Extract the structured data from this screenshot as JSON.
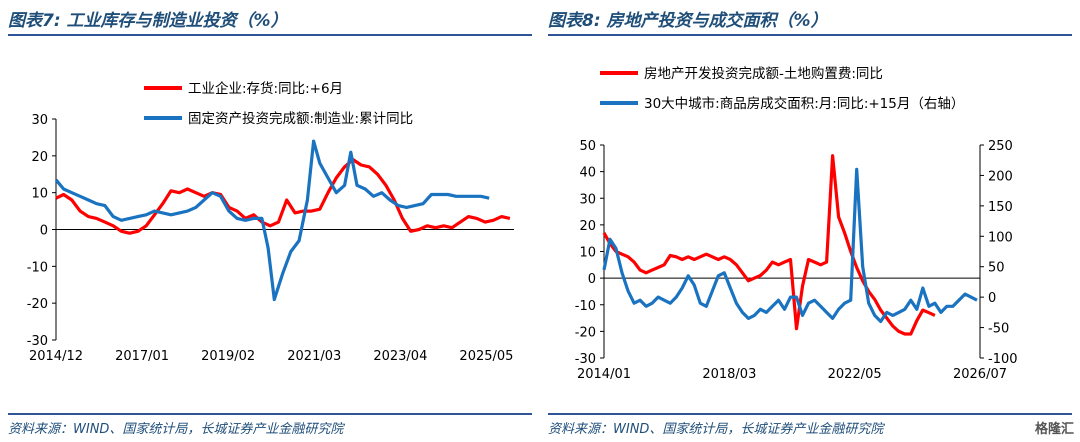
{
  "left": {
    "title": "图表7: 工业库存与制造业投资（%）",
    "source": "资料来源：WIND、国家统计局，长城证券产业金融研究院"
  },
  "right": {
    "title": "图表8: 房地产投资与成交面积（%）",
    "source": "资料来源：WIND、国家统计局，长城证券产业金融研究院"
  },
  "brand": "格隆汇",
  "colors": {
    "red": "#ff0000",
    "blue": "#1a73c0",
    "title": "#1f4e79"
  },
  "chart_data": [
    {
      "type": "line",
      "ylim": [
        -30,
        30
      ],
      "yticks": [
        -30,
        -20,
        -10,
        0,
        10,
        20,
        30
      ],
      "xlim": [
        2014.917,
        2026.0
      ],
      "xticks": [
        {
          "v": 2014.917,
          "label": "2014/12"
        },
        {
          "v": 2017.0,
          "label": "2017/01"
        },
        {
          "v": 2019.083,
          "label": "2019/02"
        },
        {
          "v": 2021.167,
          "label": "2021/03"
        },
        {
          "v": 2023.25,
          "label": "2023/04"
        },
        {
          "v": 2025.333,
          "label": "2025/05"
        }
      ],
      "legend_position": "top",
      "series": [
        {
          "name": "工业企业:存货:同比:+6月",
          "color": "red",
          "x": [
            2014.917,
            2015.1,
            2015.3,
            2015.5,
            2015.7,
            2015.9,
            2016.1,
            2016.3,
            2016.5,
            2016.7,
            2016.9,
            2017.1,
            2017.3,
            2017.5,
            2017.7,
            2017.9,
            2018.1,
            2018.3,
            2018.5,
            2018.7,
            2018.9,
            2019.1,
            2019.3,
            2019.5,
            2019.7,
            2019.9,
            2020.1,
            2020.3,
            2020.5,
            2020.7,
            2020.9,
            2021.1,
            2021.3,
            2021.5,
            2021.7,
            2021.9,
            2022.1,
            2022.3,
            2022.5,
            2022.7,
            2022.9,
            2023.1,
            2023.3,
            2023.5,
            2023.7,
            2023.9,
            2024.1,
            2024.3,
            2024.5,
            2024.7,
            2024.9,
            2025.1,
            2025.3,
            2025.5,
            2025.7,
            2025.9
          ],
          "y": [
            8.5,
            9.5,
            8,
            5,
            3.5,
            3,
            2,
            1,
            -0.5,
            -1,
            -0.5,
            1,
            4,
            7,
            10.5,
            10,
            11,
            10,
            9,
            10,
            9.5,
            6,
            5,
            3,
            4,
            2,
            1,
            2,
            8,
            4.5,
            5,
            5,
            5.5,
            10,
            14,
            17,
            19,
            17.5,
            17,
            15,
            12,
            8,
            3,
            -0.5,
            0,
            1,
            0.5,
            1,
            0.5,
            2,
            3.5,
            3,
            2,
            2.5,
            3.5,
            3
          ]
        },
        {
          "name": "固定资产投资完成额:制造业:累计同比",
          "color": "blue",
          "x": [
            2014.917,
            2015.1,
            2015.3,
            2015.5,
            2015.7,
            2015.9,
            2016.1,
            2016.3,
            2016.5,
            2016.7,
            2016.9,
            2017.1,
            2017.3,
            2017.5,
            2017.7,
            2017.9,
            2018.1,
            2018.3,
            2018.5,
            2018.7,
            2018.9,
            2019.1,
            2019.3,
            2019.5,
            2019.7,
            2019.9,
            2020.05,
            2020.2,
            2020.4,
            2020.6,
            2020.8,
            2021.0,
            2021.15,
            2021.3,
            2021.5,
            2021.7,
            2021.9,
            2022.05,
            2022.2,
            2022.4,
            2022.6,
            2022.8,
            2023.0,
            2023.2,
            2023.4,
            2023.6,
            2023.8,
            2024.0,
            2024.2,
            2024.4,
            2024.6,
            2024.8,
            2025.0,
            2025.2,
            2025.4
          ],
          "y": [
            13.5,
            11,
            10,
            9,
            8,
            7,
            6.5,
            3.5,
            2.5,
            3,
            3.5,
            4,
            5,
            4.5,
            4,
            4.5,
            5,
            6,
            8,
            10,
            9,
            5,
            3,
            2.5,
            3,
            3,
            -5,
            -19,
            -12,
            -6,
            -3,
            8,
            24,
            18,
            14,
            10,
            12,
            21,
            12,
            11,
            9,
            10,
            8,
            6.5,
            6,
            6.5,
            7,
            9.5,
            9.5,
            9.5,
            9,
            9,
            9,
            9,
            8.5
          ]
        }
      ]
    },
    {
      "type": "line",
      "ylim": [
        -30,
        50
      ],
      "yticks": [
        -30,
        -20,
        -10,
        0,
        10,
        20,
        30,
        40,
        50
      ],
      "y2lim": [
        -100,
        250
      ],
      "y2ticks": [
        -100,
        -50,
        0,
        50,
        100,
        150,
        200,
        250
      ],
      "xlim": [
        2014.0,
        2026.5
      ],
      "xticks": [
        {
          "v": 2014.0,
          "label": "2014/01"
        },
        {
          "v": 2018.167,
          "label": "2018/03"
        },
        {
          "v": 2022.333,
          "label": "2022/05"
        },
        {
          "v": 2026.5,
          "label": "2026/07"
        }
      ],
      "legend_position": "top",
      "series": [
        {
          "name": "房地产开发投资完成额-土地购置费:同比",
          "color": "red",
          "axis": "left",
          "x": [
            2014.0,
            2014.2,
            2014.4,
            2014.6,
            2014.8,
            2015.0,
            2015.2,
            2015.4,
            2015.6,
            2015.8,
            2016.0,
            2016.2,
            2016.4,
            2016.6,
            2016.8,
            2017.0,
            2017.2,
            2017.4,
            2017.6,
            2017.8,
            2018.0,
            2018.2,
            2018.4,
            2018.6,
            2018.8,
            2019.0,
            2019.2,
            2019.4,
            2019.6,
            2019.8,
            2020.0,
            2020.2,
            2020.4,
            2020.6,
            2020.8,
            2021.0,
            2021.2,
            2021.4,
            2021.6,
            2021.8,
            2022.0,
            2022.2,
            2022.4,
            2022.6,
            2022.8,
            2023.0,
            2023.2,
            2023.4,
            2023.6,
            2023.8,
            2024.0,
            2024.2,
            2024.4,
            2024.6,
            2024.8,
            2025.0
          ],
          "y": [
            17,
            13,
            10,
            9,
            8,
            6,
            3,
            2,
            3,
            4,
            5,
            8.5,
            8,
            7,
            8,
            7,
            8,
            9,
            8,
            7,
            8,
            7,
            5,
            2,
            -1,
            0,
            1,
            3,
            6,
            5,
            6,
            7,
            -19,
            -3,
            7,
            6,
            5,
            6,
            46,
            23,
            17,
            10,
            4,
            -1,
            -5,
            -8,
            -12,
            -15,
            -18,
            -20,
            -21,
            -21,
            -16,
            -12,
            -13,
            -14
          ]
        },
        {
          "name": "30大中城市:商品房成交面积:月:同比:+15月（右轴）",
          "color": "blue",
          "axis": "right",
          "x": [
            2014.0,
            2014.2,
            2014.4,
            2014.6,
            2014.8,
            2015.0,
            2015.2,
            2015.4,
            2015.6,
            2015.8,
            2016.0,
            2016.2,
            2016.4,
            2016.6,
            2016.8,
            2017.0,
            2017.2,
            2017.4,
            2017.6,
            2017.8,
            2018.0,
            2018.2,
            2018.4,
            2018.6,
            2018.8,
            2019.0,
            2019.2,
            2019.4,
            2019.6,
            2019.8,
            2020.0,
            2020.2,
            2020.4,
            2020.6,
            2020.8,
            2021.0,
            2021.2,
            2021.4,
            2021.6,
            2021.8,
            2022.0,
            2022.2,
            2022.4,
            2022.6,
            2022.8,
            2023.0,
            2023.2,
            2023.4,
            2023.6,
            2023.8,
            2024.0,
            2024.2,
            2024.4,
            2024.6,
            2024.8,
            2025.0,
            2025.2,
            2025.4,
            2025.6,
            2025.8,
            2026.0,
            2026.2,
            2026.4
          ],
          "y": [
            45,
            95,
            80,
            40,
            10,
            -10,
            -5,
            -15,
            -10,
            0,
            -5,
            -10,
            0,
            15,
            35,
            20,
            -10,
            -15,
            10,
            35,
            40,
            15,
            -10,
            -25,
            -35,
            -30,
            -20,
            -25,
            -15,
            -5,
            -20,
            0,
            0,
            -30,
            -10,
            -5,
            -15,
            -25,
            -35,
            -20,
            -10,
            -5,
            210,
            50,
            -10,
            -30,
            -40,
            -25,
            -30,
            -25,
            -20,
            -5,
            -20,
            15,
            -15,
            -10,
            -25,
            -15,
            -15,
            -5,
            5,
            0,
            -5
          ]
        }
      ]
    }
  ]
}
